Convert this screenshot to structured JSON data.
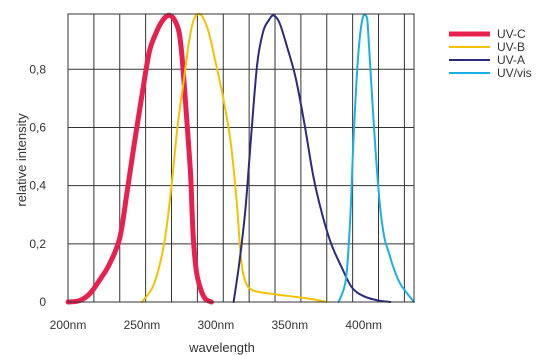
{
  "chart_data": {
    "type": "line",
    "xlabel": "wavelength",
    "ylabel": "relative intensity",
    "xlim": [
      200,
      434
    ],
    "ylim": [
      0,
      0.99
    ],
    "grid": true,
    "legend_position": "right",
    "x_grid_values": [
      200,
      217.5,
      235,
      252.5,
      270,
      287.5,
      305,
      322.5,
      340,
      357.5,
      375,
      392.5,
      410,
      427.5
    ],
    "x_tick_values": [
      200,
      250,
      300,
      350,
      400
    ],
    "x_tick_labels": [
      "200nm",
      "250nm",
      "300nm",
      "350nm",
      "400nm"
    ],
    "y_tick_values": [
      0,
      0.2,
      0.4,
      0.6,
      0.8
    ],
    "y_tick_labels": [
      "0",
      "0,2",
      "0,4",
      "0,6",
      "0,8"
    ],
    "series": [
      {
        "name": "UV-C",
        "color": "#e8204f",
        "x": [
          200,
          208,
          215,
          222,
          228,
          235,
          240,
          245,
          250,
          255,
          260,
          263,
          266,
          269,
          272,
          275,
          277,
          279,
          281,
          283,
          284,
          285,
          287,
          290,
          293,
          297
        ],
        "y": [
          0.0,
          0.005,
          0.03,
          0.08,
          0.13,
          0.22,
          0.38,
          0.55,
          0.71,
          0.86,
          0.93,
          0.96,
          0.98,
          0.985,
          0.97,
          0.93,
          0.85,
          0.72,
          0.58,
          0.43,
          0.3,
          0.2,
          0.1,
          0.04,
          0.01,
          0.0
        ]
      },
      {
        "name": "UV-B",
        "color": "#f5c200",
        "x": [
          250,
          258,
          265,
          270,
          274,
          278,
          282,
          285,
          288,
          291,
          295,
          300,
          305,
          310,
          314,
          317,
          320,
          325,
          335,
          350,
          365,
          375
        ],
        "y": [
          0.0,
          0.06,
          0.2,
          0.4,
          0.6,
          0.75,
          0.9,
          0.97,
          0.99,
          0.98,
          0.93,
          0.82,
          0.7,
          0.55,
          0.35,
          0.15,
          0.07,
          0.04,
          0.03,
          0.02,
          0.01,
          0.0
        ]
      },
      {
        "name": "UV-A",
        "color": "#2a2b80",
        "x": [
          312,
          316,
          320,
          324,
          328,
          332,
          336,
          339,
          343,
          348,
          354,
          360,
          366,
          372,
          378,
          385,
          392,
          400,
          410,
          418
        ],
        "y": [
          0.0,
          0.14,
          0.32,
          0.58,
          0.82,
          0.93,
          0.97,
          0.985,
          0.96,
          0.88,
          0.77,
          0.61,
          0.43,
          0.3,
          0.2,
          0.12,
          0.05,
          0.02,
          0.005,
          0.0
        ]
      },
      {
        "name": "UV/vis",
        "color": "#1ab0e6",
        "x": [
          383,
          388,
          391,
          393,
          396,
          399,
          402,
          403,
          405,
          408,
          411,
          414,
          417,
          420,
          425,
          434
        ],
        "y": [
          0.0,
          0.08,
          0.3,
          0.55,
          0.83,
          0.97,
          0.98,
          0.93,
          0.76,
          0.52,
          0.33,
          0.22,
          0.17,
          0.12,
          0.06,
          0.0
        ]
      }
    ]
  }
}
